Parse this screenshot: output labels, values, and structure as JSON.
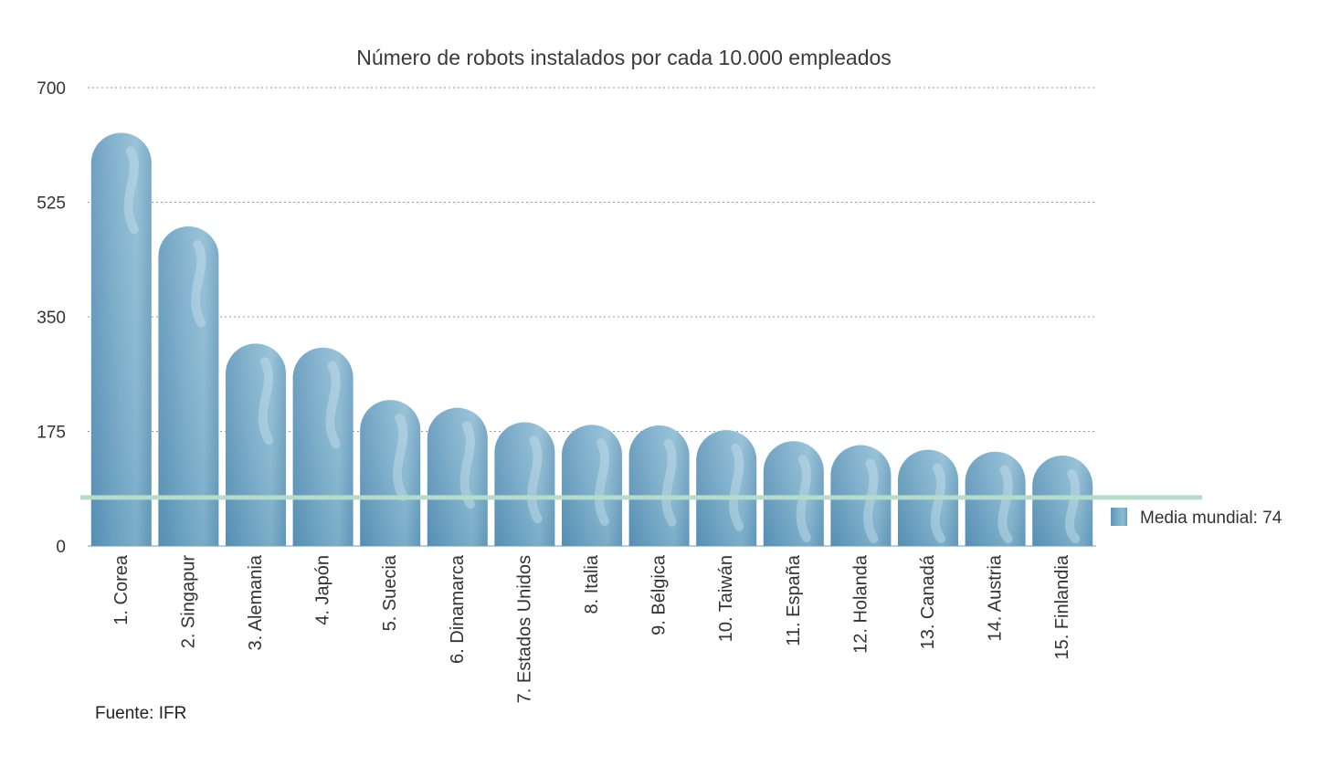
{
  "chart_data": {
    "type": "bar",
    "title": "Número de robots instalados por cada 10.000 empleados",
    "xlabel": "",
    "ylabel": "",
    "ylim": [
      0,
      700
    ],
    "yticks": [
      0,
      175,
      350,
      525,
      700
    ],
    "grid": true,
    "categories": [
      "1. Corea",
      "2. Singapur",
      "3. Alemania",
      "4. Japón",
      "5. Suecia",
      "6. Dinamarca",
      "7. Estados Unidos",
      "8. Italia",
      "9. Bélgica",
      "10. Taiwán",
      "11. España",
      "12. Holanda",
      "13. Canadá",
      "14. Austria",
      "15. Finlandia"
    ],
    "values": [
      631,
      488,
      309,
      303,
      223,
      211,
      189,
      185,
      184,
      177,
      160,
      154,
      147,
      144,
      138
    ],
    "reference_line": {
      "value": 74,
      "label": "Media mundial: 74",
      "color": "#b5dcc8"
    },
    "legend_position": "right",
    "bar_color": "#6a9fc0",
    "source": "Fuente: IFR"
  }
}
